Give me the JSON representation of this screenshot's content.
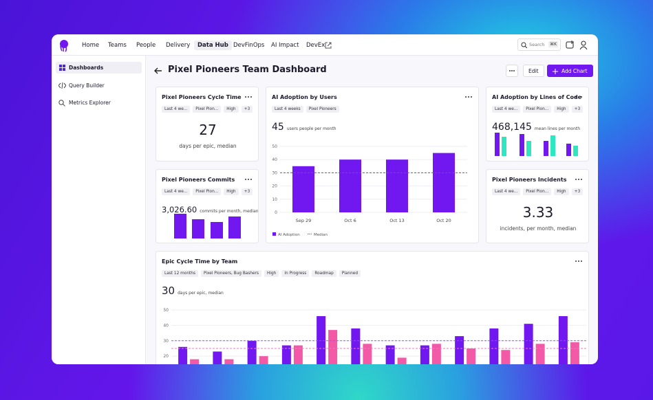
{
  "nav": {
    "items": [
      "Home",
      "Teams",
      "People",
      "Delivery",
      "Data Hub",
      "DevFinOps",
      "AI Impact",
      "DevEx"
    ],
    "search": "Search",
    "shortcut": "⌘K"
  },
  "sidebar": {
    "items": [
      "Dashboards",
      "Query Builder",
      "Metrics Explorer"
    ]
  },
  "header": {
    "title": "Pixel Pioneers Team Dashboard",
    "buttons": [
      "Edit",
      "Add Chart"
    ]
  },
  "cards": [
    {
      "title": "Pixel Pioneers Cycle Time",
      "tags": [
        "Last 4 we...",
        "Pixel Pion...",
        "High",
        "+3"
      ],
      "value": "27",
      "unit": "days per epic, median"
    },
    {
      "title": "Pixel Pioneers Commits",
      "tags": [
        "Last 4 we...",
        "Pixel Pion...",
        "High",
        "+3"
      ],
      "value": "3,026.60",
      "unit": "commits per month, median",
      "chart": {
        "type": "bar",
        "color": "#7117ef",
        "values": [
          36,
          28,
          24,
          32
        ]
      }
    },
    {
      "title": "AI Adoption by Users",
      "tags": [
        "Last 4 weeks",
        "Pixel Pioneers"
      ],
      "value": "45",
      "unit": "users people per month",
      "chart": {
        "type": "bar",
        "categories": [
          "Sep 29",
          "Oct 6",
          "Oct 13",
          "Oct 20"
        ],
        "series": [
          {
            "name": "AI Adoption",
            "color": "#7117ef",
            "values": [
              35,
              40,
              40,
              45
            ]
          }
        ],
        "reference_lines": [
          {
            "name": "Median",
            "value": 30,
            "color": "#666666"
          }
        ],
        "ylim": [
          0,
          50
        ],
        "yticks": [
          0,
          10,
          20,
          30,
          40,
          50
        ],
        "grid": true
      }
    },
    {
      "title": "AI Adoption by Lines of Code",
      "tags": [
        "Last 4 we...",
        "Pixel Pion...",
        "High",
        "+3"
      ],
      "value": "468,145",
      "unit": "mean lines per month",
      "chart": {
        "type": "bar",
        "series": [
          {
            "color": "#7117ef",
            "values": [
              34,
              32,
              22,
              18
            ]
          },
          {
            "color": "#2ee6c0",
            "values": [
              28,
              22,
              30,
              15
            ]
          }
        ]
      }
    },
    {
      "title": "Pixel Pioneers Incidents",
      "tags": [
        "Last 4 we...",
        "Pixel Pion...",
        "High",
        "+3"
      ],
      "value": "3.33",
      "unit": "incidents, per month, median"
    },
    {
      "title": "Epic Cycle Time by Team",
      "tags": [
        "Last 12 months",
        "Pixel Pioneers, Bug Bashers",
        "High",
        "In Progress",
        "Roadmap",
        "Planned"
      ],
      "value": "30",
      "unit": "days per epic, median",
      "chart": {
        "type": "bar",
        "series": [
          {
            "color": "#7117ef",
            "values": [
              26,
              23,
              30,
              27,
              46,
              38,
              27,
              27,
              33,
              38,
              41,
              46
            ]
          },
          {
            "color": "#f25aa8",
            "values": [
              18,
              18,
              20,
              27,
              37,
              28,
              19,
              28,
              25,
              24,
              28,
              29
            ]
          }
        ],
        "reference_lines": [
          {
            "value": 30,
            "color": "#8a5cf0"
          },
          {
            "value": 25,
            "color": "#f07ab8"
          }
        ],
        "ylim": [
          0,
          50
        ],
        "yticks": [
          20,
          30,
          40,
          50
        ],
        "grid": true
      }
    }
  ]
}
